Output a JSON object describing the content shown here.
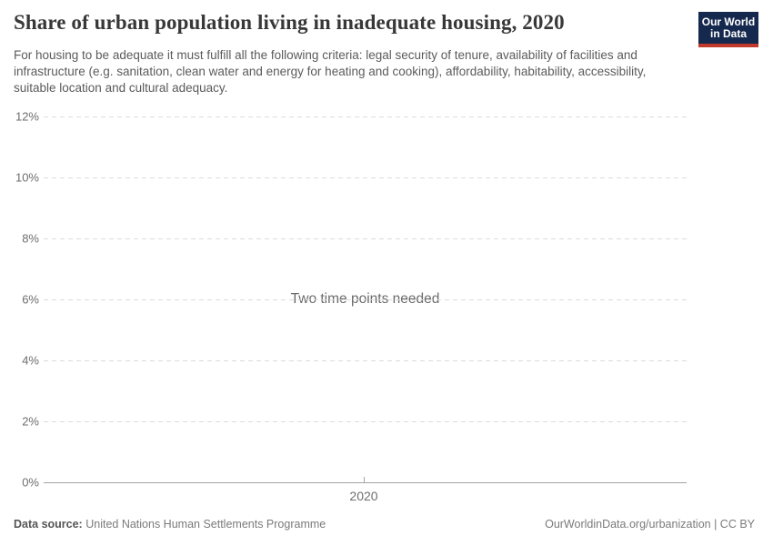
{
  "header": {
    "title": "Share of urban population living in inadequate housing, 2020",
    "subtitle": "For housing to be adequate it must fulfill all the following criteria: legal security of tenure, availability of facilities and infrastructure (e.g. sanitation, clean water and energy for heating and cooking), affordability, habitability, accessibility, suitable location and cultural adequacy.",
    "logo": {
      "line1": "Our World",
      "line2": "in Data",
      "bg_color": "#15294e",
      "stripe_color": "#c0392b",
      "text_color": "#ffffff"
    }
  },
  "chart_data": {
    "type": "line",
    "title": "Share of urban population living in inadequate housing, 2020",
    "series": [],
    "message": "Two time points needed",
    "x_tick_labels": [
      "2020"
    ],
    "y_ticks": [
      0,
      2,
      4,
      6,
      8,
      10,
      12
    ],
    "y_tick_suffix": "%",
    "ylim": [
      0,
      12
    ],
    "xlabel": "",
    "ylabel": "",
    "grid": "horizontal-dashed",
    "legend_position": "none"
  },
  "footer": {
    "datasource_label": "Data source:",
    "datasource_value": "United Nations Human Settlements Programme",
    "credit": "OurWorldinData.org/urbanization | CC BY"
  },
  "colors": {
    "grid": "#dcdcdc",
    "axis": "#a3a3a3",
    "title_text": "#383838",
    "subtitle_text": "#5b5b5b",
    "tick_text": "#6e6e6e",
    "message_text": "#6b6b6b"
  }
}
